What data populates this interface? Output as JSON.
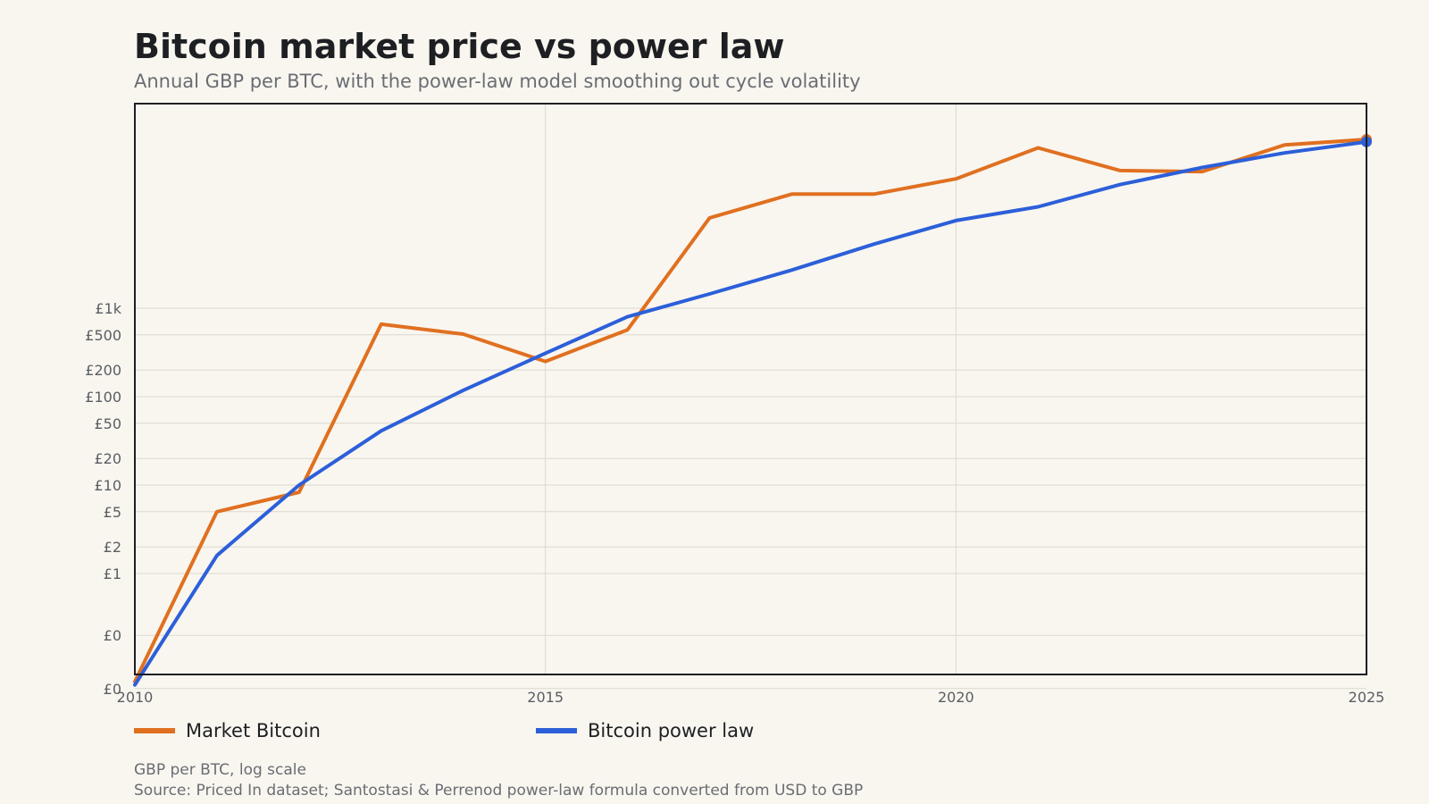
{
  "title": "Bitcoin market price vs power law",
  "subtitle": "Annual GBP per BTC, with the power-law model smoothing out cycle volatility",
  "footnote": "GBP per BTC, log scale",
  "source": "Source: Priced In dataset; Santostasi & Perrenod power-law formula converted from USD to GBP",
  "colors": {
    "background": "#f9f6f0",
    "market": "#e07020",
    "power_law": "#2c5fd9",
    "grid": "#dcd8cc",
    "axis": "#1d1f22",
    "tick_text": "#5a5d62"
  },
  "chart_data": {
    "type": "line",
    "title": "Bitcoin market price vs power law",
    "subtitle": "Annual GBP per BTC, with the power-law model smoothing out cycle volatility",
    "ylabel": "GBP per BTC, log scale",
    "y_scale": "log",
    "xlim": [
      2010,
      2025
    ],
    "x_ticks": [
      {
        "value": 2010,
        "label": "2010"
      },
      {
        "value": 2015,
        "label": "2015"
      },
      {
        "value": 2020,
        "label": "2020"
      },
      {
        "value": 2025,
        "label": "2025"
      }
    ],
    "y_ticks": [
      {
        "value": 0.05,
        "label": "£0"
      },
      {
        "value": 0.2,
        "label": "£0"
      },
      {
        "value": 1,
        "label": "£1"
      },
      {
        "value": 2,
        "label": "£2"
      },
      {
        "value": 5,
        "label": "£5"
      },
      {
        "value": 10,
        "label": "£10"
      },
      {
        "value": 20,
        "label": "£20"
      },
      {
        "value": 50,
        "label": "£50"
      },
      {
        "value": 100,
        "label": "£100"
      },
      {
        "value": 200,
        "label": "£200"
      },
      {
        "value": 500,
        "label": "£500"
      },
      {
        "value": 1000,
        "label": "£1k"
      }
    ],
    "grid": true,
    "legend_position": "bottom-left",
    "series": [
      {
        "name": "Market Bitcoin",
        "color": "#e07020",
        "x": [
          2010,
          2011,
          2012,
          2013,
          2014,
          2015,
          2016,
          2017,
          2018,
          2019,
          2020,
          2021,
          2022,
          2023,
          2024,
          2025
        ],
        "values": [
          0.06,
          5,
          8.3,
          660,
          510,
          250,
          570,
          10500,
          19500,
          19500,
          29000,
          65000,
          36000,
          35000,
          70000,
          81000
        ]
      },
      {
        "name": "Bitcoin power law",
        "color": "#2c5fd9",
        "x": [
          2010,
          2011,
          2012,
          2013,
          2014,
          2015,
          2016,
          2017,
          2018,
          2019,
          2020,
          2021,
          2022,
          2023,
          2024,
          2025
        ],
        "values": [
          0.055,
          1.6,
          10,
          41,
          118,
          310,
          800,
          1450,
          2700,
          5300,
          9800,
          14000,
          25000,
          39000,
          57000,
          76000
        ]
      }
    ]
  }
}
